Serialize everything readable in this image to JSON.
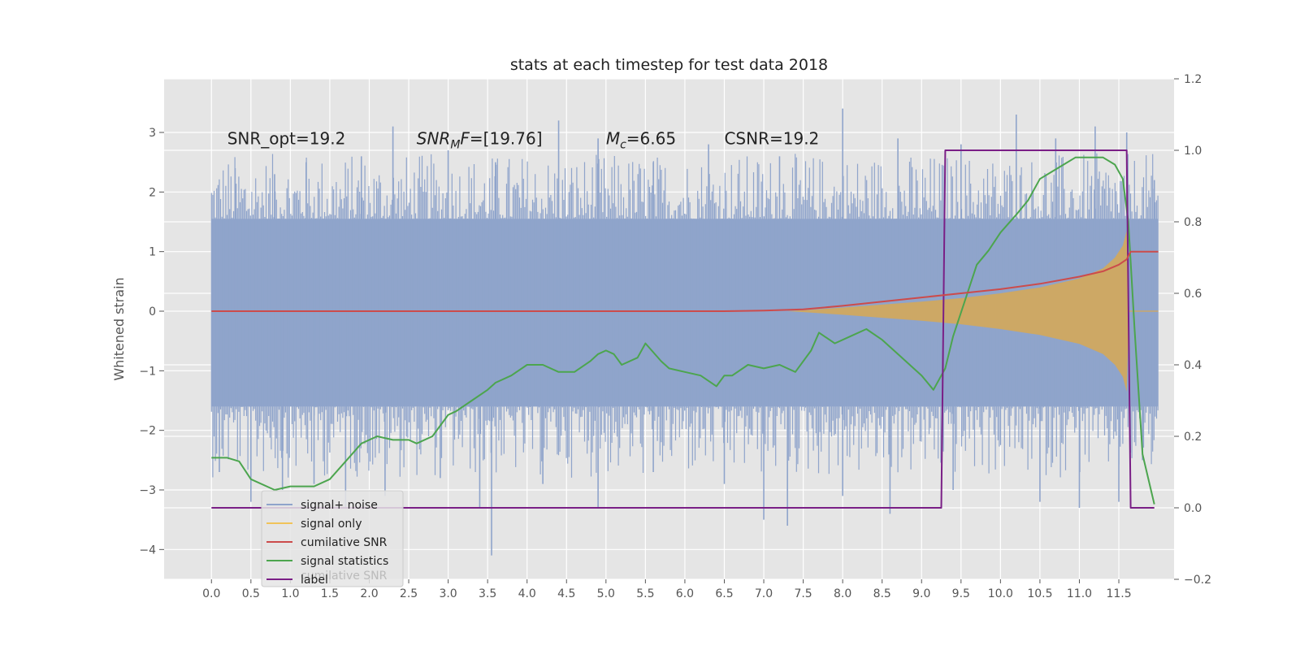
{
  "chart_data": {
    "type": "line",
    "title": "stats at each timestep for test data 2018",
    "ylabel": "Whitened strain",
    "xlabel": "",
    "xlim": [
      -0.6,
      12.2
    ],
    "ylim": [
      -4.5,
      3.9
    ],
    "y2lim": [
      -0.2,
      1.2
    ],
    "x_ticks": [
      "0.0",
      "0.5",
      "1.0",
      "1.5",
      "2.0",
      "2.5",
      "3.0",
      "3.5",
      "4.0",
      "4.5",
      "5.0",
      "5.5",
      "6.0",
      "6.5",
      "7.0",
      "7.5",
      "8.0",
      "8.5",
      "9.0",
      "9.5",
      "10.0",
      "10.5",
      "11.0",
      "11.5"
    ],
    "x_tick_values": [
      0.0,
      0.5,
      1.0,
      1.5,
      2.0,
      2.5,
      3.0,
      3.5,
      4.0,
      4.5,
      5.0,
      5.5,
      6.0,
      6.5,
      7.0,
      7.5,
      8.0,
      8.5,
      9.0,
      9.5,
      10.0,
      10.5,
      11.0,
      11.5
    ],
    "y_ticks": [
      "3",
      "2",
      "1",
      "0",
      "−1",
      "−2",
      "−3",
      "−4"
    ],
    "y_tick_values": [
      3,
      2,
      1,
      0,
      -1,
      -2,
      -3,
      -4
    ],
    "y2_ticks": [
      "1.2",
      "1.0",
      "0.8",
      "0.6",
      "0.4",
      "0.2",
      "0.0",
      "−0.2"
    ],
    "y2_tick_values": [
      1.2,
      1.0,
      0.8,
      0.6,
      0.4,
      0.2,
      0.0,
      -0.2
    ],
    "grid": true,
    "legend_position": "lower-left",
    "annotations": [
      {
        "text": "SNR_opt=19.2",
        "x": 0.2,
        "y": 2.8
      },
      {
        "text": "CSNR=19.2",
        "x": 6.5,
        "y": 2.8
      }
    ],
    "annotation_snrmf": {
      "pre": "SNR",
      "sub": "M",
      "post": "F",
      "value": "=[19.76]",
      "x": 2.6,
      "y": 2.8
    },
    "annotation_mc": {
      "pre": "M",
      "sub": "c",
      "value": "=6.65",
      "x": 5.0,
      "y": 2.8
    },
    "noise": {
      "name": "signal+ noise",
      "color": "#8fa4cb",
      "x_range": [
        0.0,
        12.0
      ],
      "band_upper": 1.55,
      "band_lower": -1.6,
      "peaks_up": [
        [
          0.3,
          2.4
        ],
        [
          0.8,
          2.3
        ],
        [
          1.2,
          2.5
        ],
        [
          1.9,
          2.6
        ],
        [
          2.3,
          3.1
        ],
        [
          3.0,
          2.7
        ],
        [
          3.6,
          2.5
        ],
        [
          4.4,
          3.2
        ],
        [
          4.9,
          2.9
        ],
        [
          5.6,
          2.5
        ],
        [
          6.3,
          2.8
        ],
        [
          7.2,
          2.6
        ],
        [
          8.0,
          3.4
        ],
        [
          8.7,
          2.9
        ],
        [
          9.5,
          2.8
        ],
        [
          10.2,
          3.3
        ],
        [
          10.7,
          2.9
        ],
        [
          11.2,
          3.1
        ],
        [
          11.6,
          3.0
        ],
        [
          11.95,
          2.2
        ]
      ],
      "peaks_down": [
        [
          0.1,
          -2.7
        ],
        [
          0.5,
          -3.2
        ],
        [
          0.9,
          -3.0
        ],
        [
          1.3,
          -2.9
        ],
        [
          1.7,
          -3.3
        ],
        [
          2.2,
          -3.1
        ],
        [
          2.9,
          -2.8
        ],
        [
          3.4,
          -3.3
        ],
        [
          3.55,
          -4.1
        ],
        [
          4.2,
          -2.9
        ],
        [
          4.9,
          -3.3
        ],
        [
          5.6,
          -2.7
        ],
        [
          6.5,
          -2.9
        ],
        [
          7.0,
          -3.5
        ],
        [
          7.3,
          -3.6
        ],
        [
          8.0,
          -3.1
        ],
        [
          8.6,
          -3.4
        ],
        [
          9.4,
          -3.0
        ],
        [
          10.5,
          -3.2
        ],
        [
          11.0,
          -3.3
        ],
        [
          11.5,
          -3.2
        ],
        [
          11.8,
          -2.5
        ]
      ]
    },
    "signal_only": {
      "name": "signal only",
      "color": "#d4a85a",
      "envelope": [
        [
          7.3,
          0.0
        ],
        [
          7.5,
          0.015
        ],
        [
          8.0,
          0.06
        ],
        [
          8.5,
          0.11
        ],
        [
          9.0,
          0.16
        ],
        [
          9.5,
          0.22
        ],
        [
          10.0,
          0.3
        ],
        [
          10.5,
          0.4
        ],
        [
          11.0,
          0.55
        ],
        [
          11.3,
          0.72
        ],
        [
          11.45,
          0.9
        ],
        [
          11.55,
          1.1
        ],
        [
          11.6,
          1.35
        ],
        [
          11.63,
          0.0
        ]
      ]
    },
    "series": [
      {
        "name": "cumilative SNR",
        "color": "#cc4b4b",
        "axis": "left",
        "x": [
          0.0,
          6.5,
          7.0,
          7.5,
          8.0,
          8.5,
          9.0,
          9.5,
          10.0,
          10.5,
          11.0,
          11.3,
          11.5,
          11.6,
          11.65,
          12.0
        ],
        "y": [
          0.0,
          0.0,
          0.01,
          0.03,
          0.09,
          0.16,
          0.23,
          0.3,
          0.37,
          0.46,
          0.58,
          0.67,
          0.78,
          0.87,
          1.0,
          1.0
        ]
      },
      {
        "name": "signal statistics",
        "color": "#4ca54e",
        "axis": "right",
        "x": [
          0.0,
          0.1,
          0.2,
          0.35,
          0.5,
          0.8,
          1.0,
          1.3,
          1.5,
          1.7,
          1.9,
          2.1,
          2.3,
          2.5,
          2.6,
          2.8,
          3.0,
          3.1,
          3.3,
          3.5,
          3.6,
          3.8,
          4.0,
          4.2,
          4.4,
          4.6,
          4.8,
          4.9,
          5.0,
          5.1,
          5.2,
          5.4,
          5.5,
          5.7,
          5.8,
          6.0,
          6.2,
          6.4,
          6.5,
          6.6,
          6.8,
          7.0,
          7.2,
          7.4,
          7.6,
          7.7,
          7.9,
          8.1,
          8.3,
          8.5,
          8.7,
          8.9,
          9.0,
          9.15,
          9.3,
          9.4,
          9.55,
          9.7,
          9.85,
          10.0,
          10.2,
          10.35,
          10.5,
          10.65,
          10.8,
          10.95,
          11.1,
          11.3,
          11.45,
          11.55,
          11.62,
          11.7,
          11.8,
          11.95
        ],
        "y": [
          0.14,
          0.14,
          0.14,
          0.13,
          0.08,
          0.05,
          0.06,
          0.06,
          0.08,
          0.13,
          0.18,
          0.2,
          0.19,
          0.19,
          0.18,
          0.2,
          0.26,
          0.27,
          0.3,
          0.33,
          0.35,
          0.37,
          0.4,
          0.4,
          0.38,
          0.38,
          0.41,
          0.43,
          0.44,
          0.43,
          0.4,
          0.42,
          0.46,
          0.41,
          0.39,
          0.38,
          0.37,
          0.34,
          0.37,
          0.37,
          0.4,
          0.39,
          0.4,
          0.38,
          0.44,
          0.49,
          0.46,
          0.48,
          0.5,
          0.47,
          0.43,
          0.39,
          0.37,
          0.33,
          0.39,
          0.48,
          0.58,
          0.68,
          0.72,
          0.77,
          0.82,
          0.86,
          0.92,
          0.94,
          0.96,
          0.98,
          0.98,
          0.98,
          0.96,
          0.92,
          0.8,
          0.5,
          0.15,
          0.01
        ]
      },
      {
        "name": "label",
        "color": "#7a1f86",
        "axis": "right",
        "x": [
          0.0,
          9.25,
          9.3,
          11.6,
          11.65,
          11.95
        ],
        "y": [
          0.0,
          0.0,
          1.0,
          1.0,
          0.0,
          0.0
        ]
      }
    ],
    "legend_ghost_text": "cumilative SNR"
  }
}
